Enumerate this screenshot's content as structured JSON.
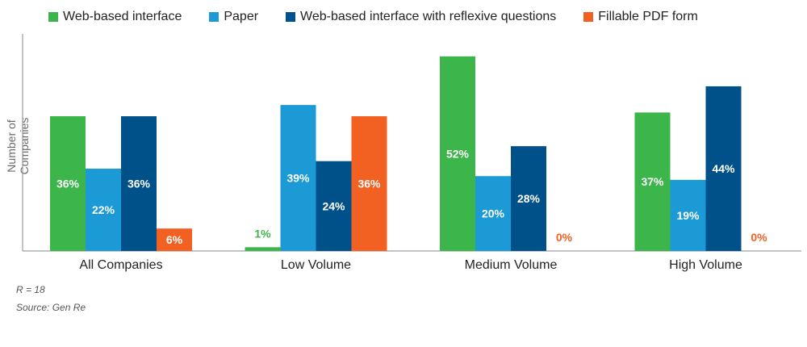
{
  "chart_data": {
    "type": "bar",
    "title": "",
    "xlabel": "",
    "ylabel": "Number of Companies",
    "categories": [
      "All Companies",
      "Low Volume",
      "Medium Volume",
      "High Volume"
    ],
    "series": [
      {
        "name": "Web-based interface",
        "color": "#3cb54a",
        "values": [
          36,
          1,
          52,
          37
        ]
      },
      {
        "name": "Paper",
        "color": "#1b9ad6",
        "values": [
          22,
          39,
          20,
          19
        ]
      },
      {
        "name": "Web-based interface with reflexive questions",
        "color": "#005089",
        "values": [
          36,
          24,
          28,
          44
        ]
      },
      {
        "name": "Fillable PDF form",
        "color": "#f26122",
        "values": [
          6,
          36,
          0,
          0
        ]
      }
    ],
    "value_suffix": "%",
    "ylim": [
      0,
      58
    ],
    "legend_position": "top",
    "grid": false
  },
  "notes": {
    "respondents": "R = 18",
    "source": "Source: Gen Re"
  }
}
